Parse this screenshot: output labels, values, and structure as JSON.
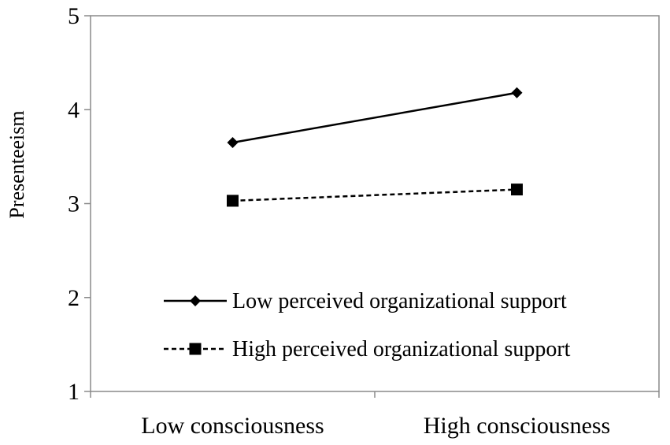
{
  "chart_data": {
    "type": "line",
    "categories": [
      "Low consciousness",
      "High consciousness"
    ],
    "ylabel": "Presenteeism",
    "xlabel": "",
    "ylim": [
      1,
      5
    ],
    "yticks": [
      "1",
      "2",
      "3",
      "4",
      "5"
    ],
    "grid": false,
    "legend_position": "bottom-right",
    "series": [
      {
        "name": "Low perceived organizational support",
        "values": [
          3.65,
          4.18
        ],
        "marker": "diamond",
        "line_style": "solid",
        "color": "#000000"
      },
      {
        "name": "High perceived organizational support",
        "values": [
          3.03,
          3.15
        ],
        "marker": "square",
        "line_style": "dashed",
        "color": "#000000"
      }
    ]
  }
}
